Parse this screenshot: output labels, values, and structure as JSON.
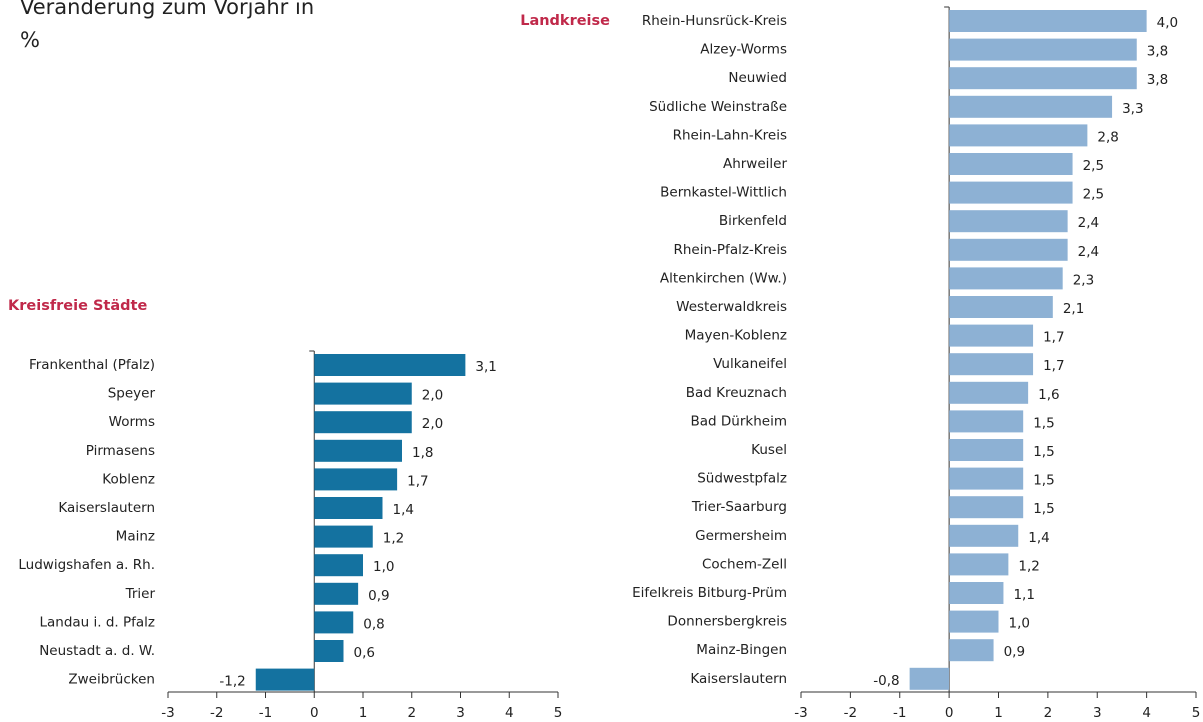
{
  "title": "Veränderung zum Vorjahr in %",
  "chart_data": [
    {
      "type": "bar",
      "title": "Kreisfreie Städte",
      "orientation": "horizontal",
      "color": "#1472a0",
      "categories": [
        "Frankenthal (Pfalz)",
        "Speyer",
        "Worms",
        "Pirmasens",
        "Koblenz",
        "Kaiserslautern",
        "Mainz",
        "Ludwigshafen a. Rh.",
        "Trier",
        "Landau i. d. Pfalz",
        "Neustadt a. d. W.",
        "Zweibrücken"
      ],
      "values": [
        3.1,
        2.0,
        2.0,
        1.8,
        1.7,
        1.4,
        1.2,
        1.0,
        0.9,
        0.8,
        0.6,
        -1.2
      ],
      "value_labels": [
        "3,1",
        "2,0",
        "2,0",
        "1,8",
        "1,7",
        "1,4",
        "1,2",
        "1,0",
        "0,9",
        "0,8",
        "0,6",
        "-1,2"
      ],
      "xlim": [
        -3,
        5
      ],
      "xticks": [
        -3,
        -2,
        -1,
        0,
        1,
        2,
        3,
        4,
        5
      ]
    },
    {
      "type": "bar",
      "title": "Landkreise",
      "orientation": "horizontal",
      "color": "#8db1d4",
      "categories": [
        "Rhein-Hunsrück-Kreis",
        "Alzey-Worms",
        "Neuwied",
        "Südliche Weinstraße",
        "Rhein-Lahn-Kreis",
        "Ahrweiler",
        "Bernkastel-Wittlich",
        "Birkenfeld",
        "Rhein-Pfalz-Kreis",
        "Altenkirchen (Ww.)",
        "Westerwaldkreis",
        "Mayen-Koblenz",
        "Vulkaneifel",
        "Bad Kreuznach",
        "Bad Dürkheim",
        "Kusel",
        "Südwestpfalz",
        "Trier-Saarburg",
        "Germersheim",
        "Cochem-Zell",
        "Eifelkreis Bitburg-Prüm",
        "Donnersbergkreis",
        "Mainz-Bingen",
        "Kaiserslautern"
      ],
      "values": [
        4.0,
        3.8,
        3.8,
        3.3,
        2.8,
        2.5,
        2.5,
        2.4,
        2.4,
        2.3,
        2.1,
        1.7,
        1.7,
        1.6,
        1.5,
        1.5,
        1.5,
        1.5,
        1.4,
        1.2,
        1.1,
        1.0,
        0.9,
        -0.8
      ],
      "value_labels": [
        "4,0",
        "3,8",
        "3,8",
        "3,3",
        "2,8",
        "2,5",
        "2,5",
        "2,4",
        "2,4",
        "2,3",
        "2,1",
        "1,7",
        "1,7",
        "1,6",
        "1,5",
        "1,5",
        "1,5",
        "1,5",
        "1,4",
        "1,2",
        "1,1",
        "1,0",
        "0,9",
        "-0,8"
      ],
      "xlim": [
        -3,
        5
      ],
      "xticks": [
        -3,
        -2,
        -1,
        0,
        1,
        2,
        3,
        4,
        5
      ]
    }
  ]
}
